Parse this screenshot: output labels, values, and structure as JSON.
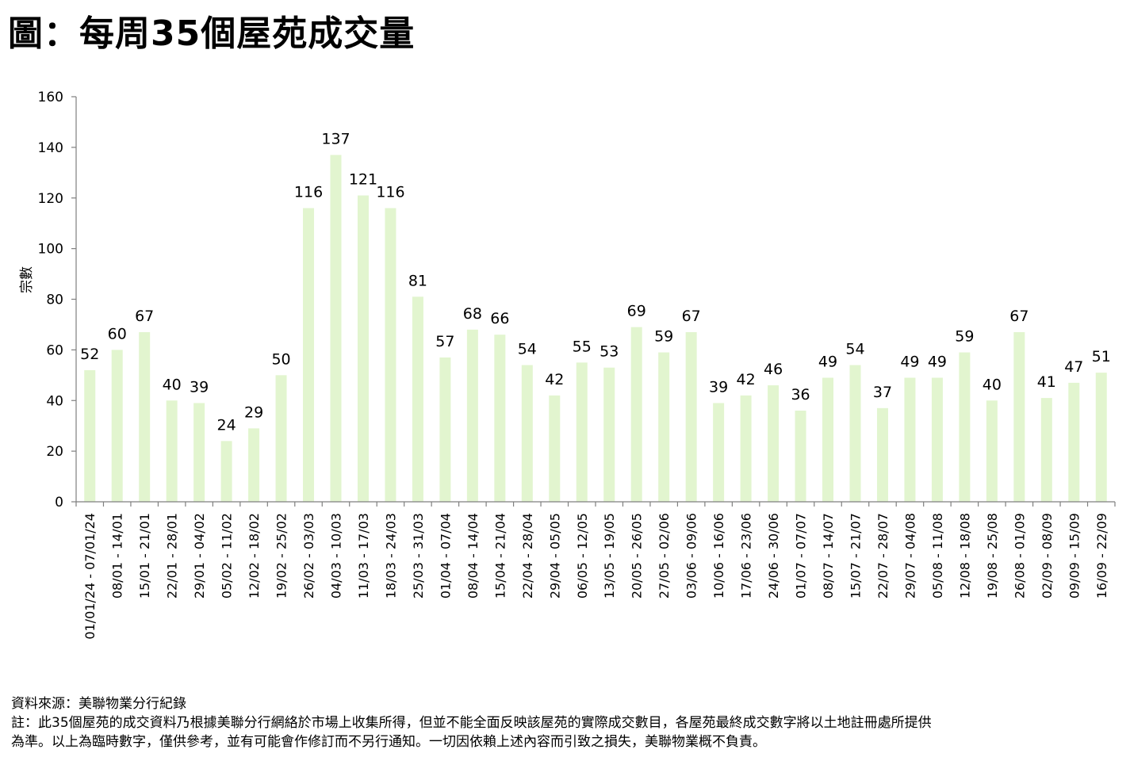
{
  "title": "圖：每周35個屋苑成交量",
  "chart_data": {
    "type": "bar",
    "ylabel": "宗數",
    "xlabel": "",
    "ylim": [
      0,
      160
    ],
    "yticks": [
      0,
      20,
      40,
      60,
      80,
      100,
      120,
      140,
      160
    ],
    "grid": false,
    "legend": "none",
    "bar_color": "#e2f5cf",
    "categories": [
      "01/01/24 - 07/01/24",
      "08/01 - 14/01",
      "15/01 - 21/01",
      "22/01 - 28/01",
      "29/01 - 04/02",
      "05/02 - 11/02",
      "12/02 - 18/02",
      "19/02 - 25/02",
      "26/02 - 03/03",
      "04/03 - 10/03",
      "11/03 - 17/03",
      "18/03 - 24/03",
      "25/03 - 31/03",
      "01/04 - 07/04",
      "08/04 - 14/04",
      "15/04 - 21/04",
      "22/04 - 28/04",
      "29/04 - 05/05",
      "06/05 - 12/05",
      "13/05 - 19/05",
      "20/05 - 26/05",
      "27/05 - 02/06",
      "03/06 - 09/06",
      "10/06 - 16/06",
      "17/06 - 23/06",
      "24/06 - 30/06",
      "01/07 - 07/07",
      "08/07 - 14/07",
      "15/07 - 21/07",
      "22/07 - 28/07",
      "29/07 - 04/08",
      "05/08 - 11/08",
      "12/08 - 18/08",
      "19/08 - 25/08",
      "26/08 - 01/09",
      "02/09 - 08/09",
      "09/09 - 15/09",
      "16/09 - 22/09"
    ],
    "values": [
      52,
      60,
      67,
      40,
      39,
      24,
      29,
      50,
      116,
      137,
      121,
      116,
      81,
      57,
      68,
      66,
      54,
      42,
      55,
      53,
      69,
      59,
      67,
      39,
      42,
      46,
      36,
      49,
      54,
      37,
      49,
      49,
      59,
      40,
      67,
      41,
      47,
      51
    ]
  },
  "notes": {
    "source": "資料來源：美聯物業分行紀錄",
    "note_line1": "註：此35個屋苑的成交資料乃根據美聯分行網絡於市場上收集所得，但並不能全面反映該屋苑的實際成交數目，各屋苑最終成交數字將以土地註冊處所提供",
    "note_line2": "為準。以上為臨時數字，僅供參考，並有可能會作修訂而不另行通知。一切因依賴上述內容而引致之損失，美聯物業概不負責。"
  }
}
